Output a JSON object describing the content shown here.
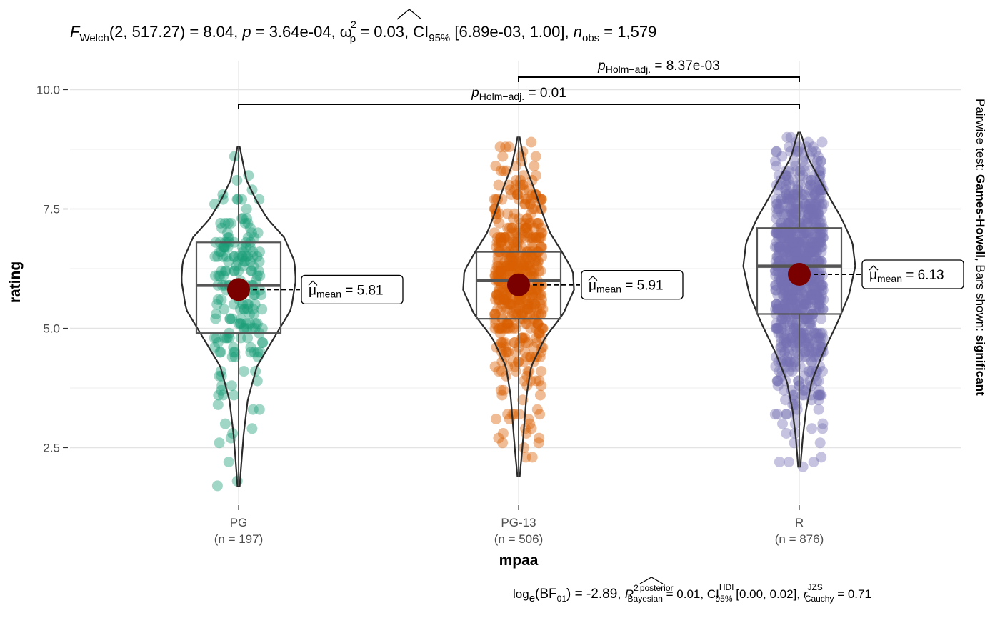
{
  "colors": {
    "PG": "#1b9e77",
    "PG-13": "#d95f02",
    "R": "#7570b3",
    "mean_point": "#7a0000",
    "violin_stroke": "#2b2b2b",
    "box_stroke": "#555555",
    "grid": "#e6e6e6"
  },
  "header": {
    "F": "F",
    "F_sub": "Welch",
    "df": "(2, 517.27)",
    "stat_rest": " = 8.04, ",
    "p_sym": "p",
    "p_val": " = 3.64e-04, ",
    "omega": "ω",
    "omega_sup": "2",
    "omega_sub": "p",
    "omega_val": " = 0.03, CI",
    "ci_sub": "95%",
    "ci_val": " [6.89e-03, 1.00], ",
    "n_sym": "n",
    "n_sub": "obs",
    "n_val": " = 1,579"
  },
  "footer": {
    "log": "log",
    "log_sub": "e",
    "bf": "(BF",
    "bf_sub": "01",
    "bf_val": ") = -2.89, ",
    "r2": "R",
    "r2_sup": "2",
    "r2_post": "posterior",
    "r2_sub": "Bayesian",
    "r2_val": " = 0.01, CI",
    "ci_sup": "HDI",
    "ci_sub": "95%",
    "ci_val": " [0.00, 0.02], ",
    "r": "r",
    "r_sup": "JZS",
    "r_sub": "Cauchy",
    "r_val": " = 0.71"
  },
  "side_caption": {
    "prefix": "Pairwise test: ",
    "test": "Games-Howell",
    "middle": ", Bars shown: ",
    "shown": "significant"
  },
  "comparisons": [
    {
      "from": "PG-13",
      "to": "R",
      "p_sym": "p",
      "p_sub": "Holm−adj.",
      "p_val": " = 8.37e-03"
    },
    {
      "from": "PG",
      "to": "R",
      "p_sym": "p",
      "p_sub": "Holm−adj.",
      "p_val": " = 0.01"
    }
  ],
  "mean_label": {
    "mu": "μ",
    "sub": "mean"
  },
  "chart_data": {
    "type": "violin-box-scatter",
    "xlabel": "mpaa",
    "ylabel": "rating",
    "ylim": [
      1.2,
      10.9
    ],
    "yticks": [
      2.5,
      5.0,
      7.5,
      10.0
    ],
    "yticklabels": [
      "2.5",
      "5.0",
      "7.5",
      "10.0"
    ],
    "grid": true,
    "groups": [
      {
        "name": "PG",
        "n_label": "(n = 197)",
        "n": 197,
        "box": {
          "q1": 4.9,
          "median": 5.9,
          "q3": 6.8,
          "whisker_low": 1.7,
          "whisker_high": 8.8
        },
        "mean": 5.81,
        "mean_text": " = 5.81",
        "range": [
          1.7,
          8.8
        ],
        "density": [
          [
            1.7,
            0.02
          ],
          [
            2.2,
            0.05
          ],
          [
            2.8,
            0.09
          ],
          [
            3.5,
            0.16
          ],
          [
            4.2,
            0.32
          ],
          [
            4.8,
            0.62
          ],
          [
            5.4,
            0.92
          ],
          [
            6.0,
            1.0
          ],
          [
            6.4,
            0.98
          ],
          [
            6.9,
            0.8
          ],
          [
            7.3,
            0.5
          ],
          [
            7.7,
            0.3
          ],
          [
            8.1,
            0.14
          ],
          [
            8.5,
            0.07
          ],
          [
            8.8,
            0.02
          ]
        ]
      },
      {
        "name": "PG-13",
        "n_label": "(n = 506)",
        "n": 506,
        "box": {
          "q1": 5.2,
          "median": 6.0,
          "q3": 6.6,
          "whisker_low": 1.9,
          "whisker_high": 9.0
        },
        "mean": 5.91,
        "mean_text": " = 5.91",
        "range": [
          1.9,
          9.0
        ],
        "density": [
          [
            1.9,
            0.02
          ],
          [
            2.4,
            0.06
          ],
          [
            3.0,
            0.1
          ],
          [
            3.6,
            0.14
          ],
          [
            4.2,
            0.22
          ],
          [
            4.8,
            0.46
          ],
          [
            5.3,
            0.78
          ],
          [
            5.8,
            0.97
          ],
          [
            6.2,
            0.95
          ],
          [
            6.6,
            0.76
          ],
          [
            7.0,
            0.55
          ],
          [
            7.4,
            0.42
          ],
          [
            7.9,
            0.28
          ],
          [
            8.4,
            0.12
          ],
          [
            8.8,
            0.05
          ],
          [
            9.0,
            0.02
          ]
        ]
      },
      {
        "name": "R",
        "n_label": "(n = 876)",
        "n": 876,
        "box": {
          "q1": 5.3,
          "median": 6.3,
          "q3": 7.1,
          "whisker_low": 2.1,
          "whisker_high": 9.1
        },
        "mean": 6.13,
        "mean_text": " = 6.13",
        "range": [
          2.1,
          9.1
        ],
        "density": [
          [
            2.1,
            0.02
          ],
          [
            2.7,
            0.06
          ],
          [
            3.3,
            0.12
          ],
          [
            3.9,
            0.22
          ],
          [
            4.5,
            0.42
          ],
          [
            5.1,
            0.66
          ],
          [
            5.7,
            0.87
          ],
          [
            6.3,
            0.98
          ],
          [
            6.8,
            0.93
          ],
          [
            7.3,
            0.74
          ],
          [
            7.8,
            0.5
          ],
          [
            8.2,
            0.32
          ],
          [
            8.6,
            0.14
          ],
          [
            9.0,
            0.05
          ],
          [
            9.1,
            0.02
          ]
        ]
      }
    ]
  }
}
